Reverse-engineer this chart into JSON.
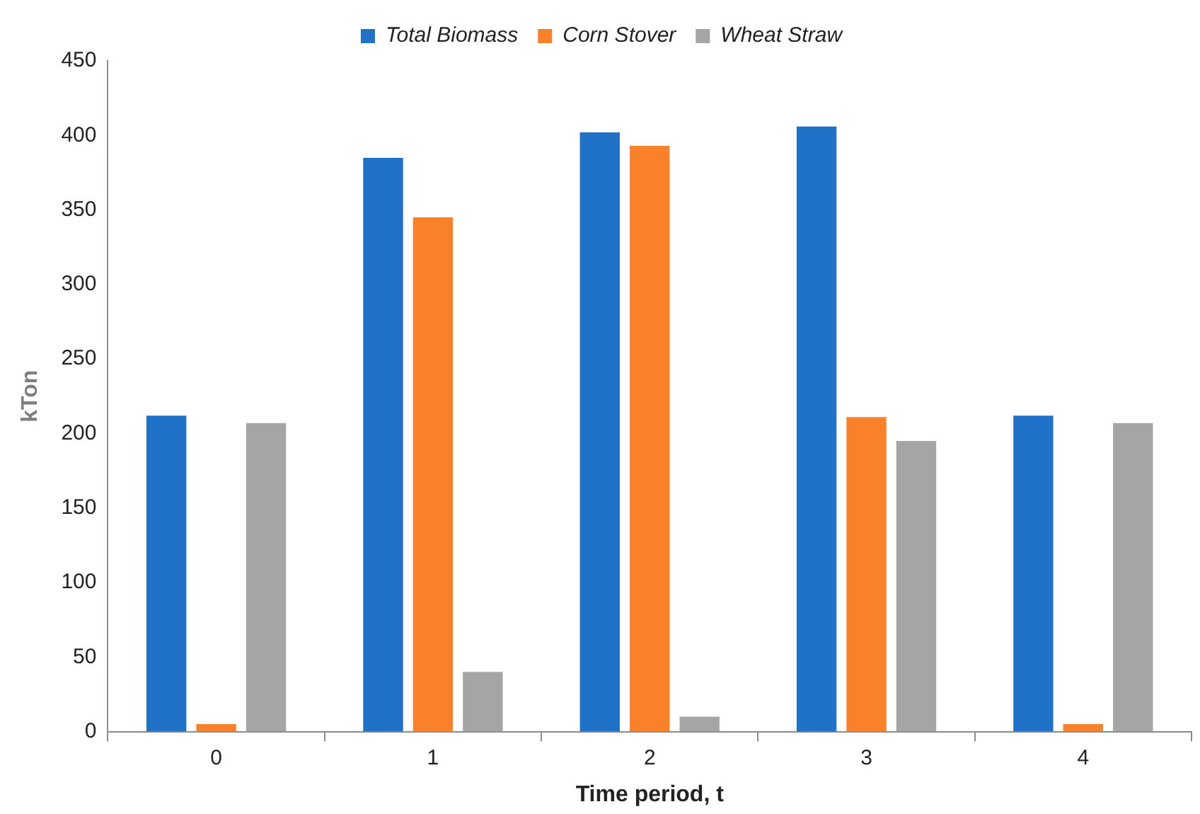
{
  "chart_data": {
    "type": "bar",
    "xlabel": "Time period, t",
    "ylabel": "kTon",
    "categories": [
      "0",
      "1",
      "2",
      "3",
      "4"
    ],
    "series": [
      {
        "name": "Total Biomass",
        "color": "#1f72c8",
        "values": [
          212,
          385,
          402,
          406,
          212
        ]
      },
      {
        "name": "Corn Stover",
        "color": "#f98129",
        "values": [
          5,
          345,
          393,
          211,
          5
        ]
      },
      {
        "name": "Wheat Straw",
        "color": "#a5a5a5",
        "values": [
          207,
          40,
          10,
          195,
          207
        ]
      }
    ],
    "ylim": [
      0,
      450
    ],
    "yticks": [
      0,
      50,
      100,
      150,
      200,
      250,
      300,
      350,
      400,
      450
    ],
    "grid": false,
    "legend": "top"
  }
}
